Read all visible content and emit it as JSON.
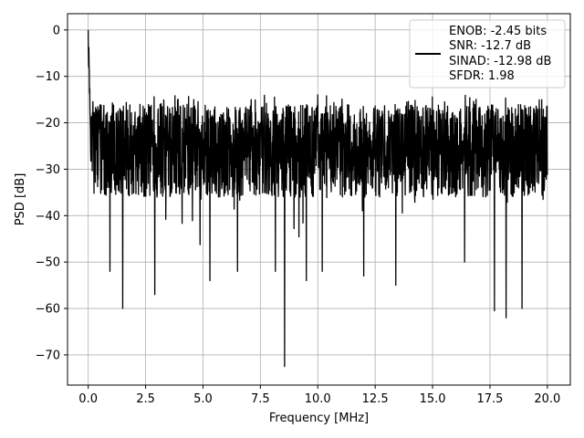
{
  "chart_data": {
    "type": "line",
    "title": "",
    "xlabel": "Frequency [MHz]",
    "ylabel": "PSD [dB]",
    "xlim": [
      -0.9,
      21.0
    ],
    "ylim": [
      -76.5,
      3.5
    ],
    "xticks": [
      0.0,
      2.5,
      5.0,
      7.5,
      10.0,
      12.5,
      15.0,
      17.5,
      20.0
    ],
    "xtick_labels": [
      "0.0",
      "2.5",
      "5.0",
      "7.5",
      "10.0",
      "12.5",
      "15.0",
      "17.5",
      "20.0"
    ],
    "yticks": [
      0,
      -10,
      -20,
      -30,
      -40,
      -50,
      -60,
      -70
    ],
    "ytick_labels": [
      "0",
      "−10",
      "−20",
      "−30",
      "−40",
      "−50",
      "−60",
      "−70"
    ],
    "grid": true,
    "legend_position": "top-right",
    "series": [
      {
        "name": "",
        "color": "#000000",
        "x_range": [
          0.0,
          20.0
        ],
        "points": 2049,
        "noise_floor_mean_db": -27,
        "noise_band_db": [
          -36,
          -16
        ],
        "dc_peak_db": 0,
        "notable_dips": [
          {
            "x": 1.5,
            "y": -60
          },
          {
            "x": 0.95,
            "y": -52
          },
          {
            "x": 2.9,
            "y": -57
          },
          {
            "x": 5.3,
            "y": -54
          },
          {
            "x": 6.5,
            "y": -52
          },
          {
            "x": 8.15,
            "y": -52
          },
          {
            "x": 8.55,
            "y": -72.5
          },
          {
            "x": 9.5,
            "y": -54
          },
          {
            "x": 10.2,
            "y": -52
          },
          {
            "x": 12.0,
            "y": -53
          },
          {
            "x": 13.4,
            "y": -55
          },
          {
            "x": 16.4,
            "y": -50
          },
          {
            "x": 17.7,
            "y": -60.5
          },
          {
            "x": 18.2,
            "y": -62
          },
          {
            "x": 18.9,
            "y": -60
          }
        ],
        "notable_peaks": [
          {
            "x": 10.0,
            "y": -14
          },
          {
            "x": 7.1,
            "y": -15
          },
          {
            "x": 4.6,
            "y": -15
          }
        ]
      }
    ],
    "legend_lines": [
      "ENOB: -2.45 bits",
      "SNR: -12.7 dB",
      "SINAD: -12.98 dB",
      "SFDR: 1.98"
    ]
  }
}
